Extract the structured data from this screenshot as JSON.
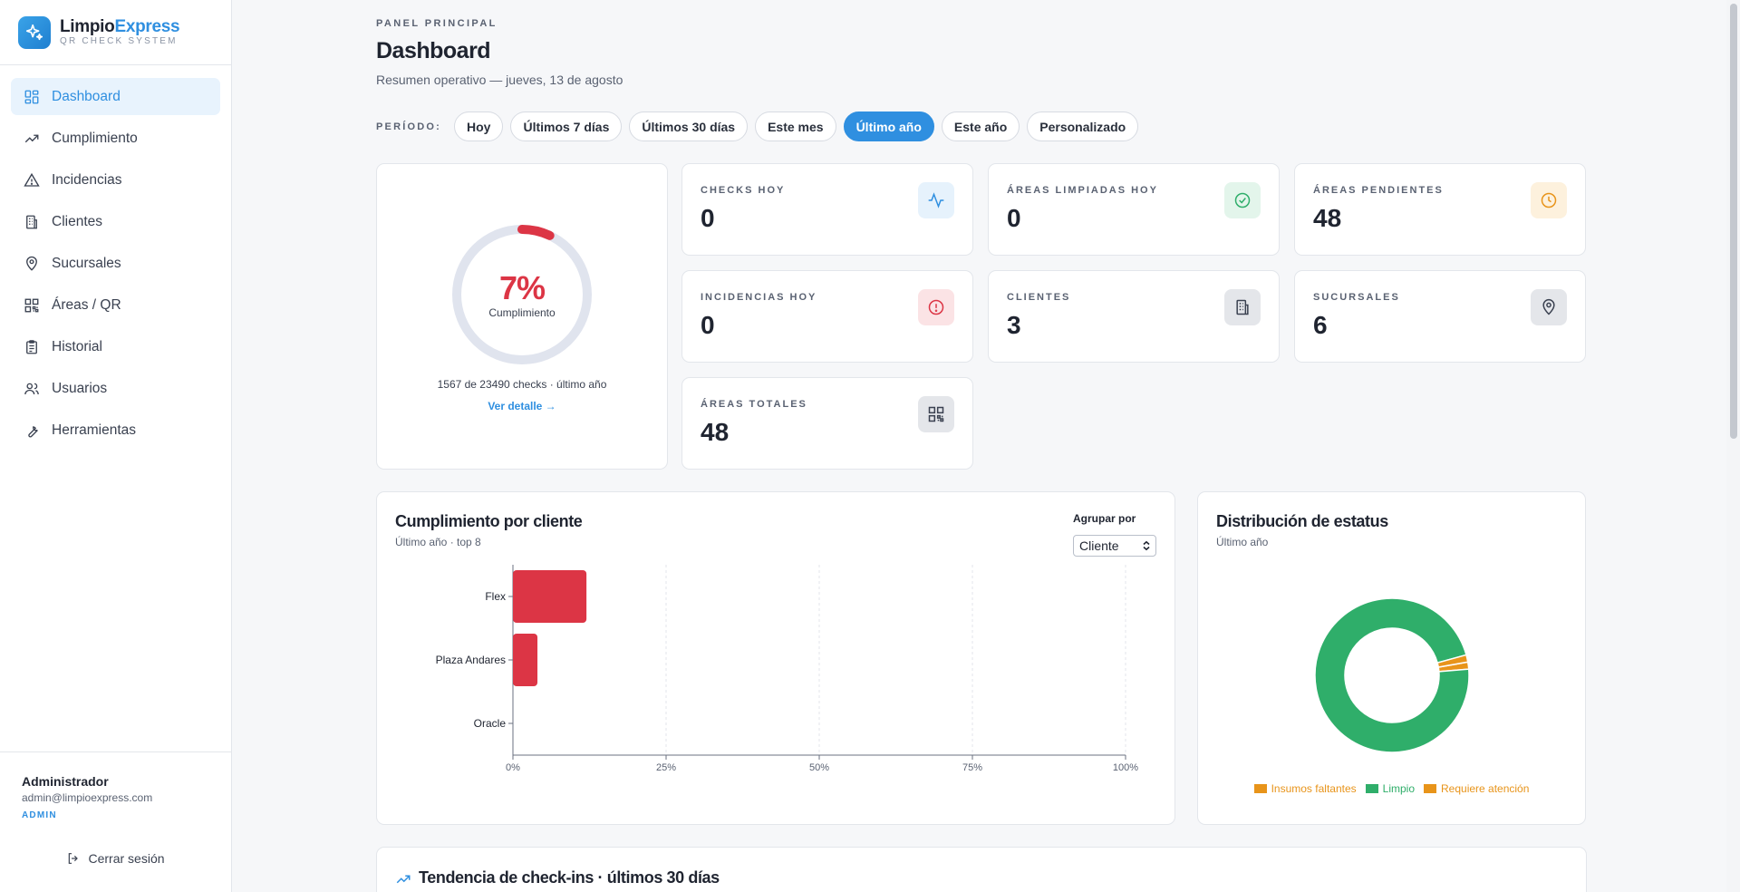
{
  "brand": {
    "name_part1": "Limpio",
    "name_part2": "Express",
    "subtitle": "QR CHECK SYSTEM"
  },
  "nav": [
    {
      "label": "Dashboard",
      "icon": "grid-icon",
      "active": true
    },
    {
      "label": "Cumplimiento",
      "icon": "trend-icon"
    },
    {
      "label": "Incidencias",
      "icon": "warning-icon"
    },
    {
      "label": "Clientes",
      "icon": "building-icon"
    },
    {
      "label": "Sucursales",
      "icon": "map-pin-icon"
    },
    {
      "label": "Áreas / QR",
      "icon": "qr-icon"
    },
    {
      "label": "Historial",
      "icon": "clipboard-icon"
    },
    {
      "label": "Usuarios",
      "icon": "users-icon"
    },
    {
      "label": "Herramientas",
      "icon": "wrench-icon"
    }
  ],
  "user": {
    "name": "Administrador",
    "email": "admin@limpioexpress.com",
    "role": "ADMIN",
    "logout": "Cerrar sesión"
  },
  "header": {
    "eyebrow": "PANEL PRINCIPAL",
    "title": "Dashboard",
    "subtitle": "Resumen operativo — jueves, 13 de agosto"
  },
  "period": {
    "label": "PERÍODO:",
    "options": [
      "Hoy",
      "Últimos 7 días",
      "Últimos 30 días",
      "Este mes",
      "Último año",
      "Este año",
      "Personalizado"
    ],
    "selected": "Último año"
  },
  "gauge": {
    "percent_label": "7%",
    "value": 0.07,
    "label": "Cumplimiento",
    "summary": "1567 de 23490 checks · último año",
    "link": "Ver detalle →"
  },
  "kpis": [
    {
      "label": "CHECKS HOY",
      "value": "0",
      "icon": "activity-icon"
    },
    {
      "label": "ÁREAS LIMPIADAS HOY",
      "value": "0",
      "icon": "check-circle-icon"
    },
    {
      "label": "ÁREAS PENDIENTES",
      "value": "48",
      "icon": "clock-icon"
    },
    {
      "label": "INCIDENCIAS HOY",
      "value": "0",
      "icon": "alert-circle-icon"
    },
    {
      "label": "CLIENTES",
      "value": "3",
      "icon": "building-icon"
    },
    {
      "label": "SUCURSALES",
      "value": "6",
      "icon": "map-pin-icon"
    },
    {
      "label": "ÁREAS TOTALES",
      "value": "48",
      "icon": "qr-icon"
    }
  ],
  "compliance": {
    "title": "Cumplimiento por cliente",
    "subtitle": "Último año · top 8",
    "group_label": "Agrupar por",
    "group_value": "Cliente"
  },
  "status": {
    "title": "Distribución de estatus",
    "subtitle": "Último año"
  },
  "trend": {
    "title": "Tendencia de check-ins · últimos 30 días"
  },
  "chart_data": [
    {
      "type": "bar",
      "orientation": "horizontal",
      "categories": [
        "Flex",
        "Plaza Andares",
        "Oracle"
      ],
      "values": [
        12,
        4,
        0
      ],
      "xlim": [
        0,
        100
      ],
      "xticks": [
        "0%",
        "25%",
        "50%",
        "75%",
        "100%"
      ],
      "grid": true,
      "color": "#dc3545"
    },
    {
      "type": "pie",
      "donut": true,
      "labels": [
        "Insumos faltantes",
        "Limpio",
        "Requiere atención"
      ],
      "values": [
        1.5,
        97,
        1.5
      ],
      "colors": [
        "#e8941a",
        "#2fae6a",
        "#e8941a"
      ],
      "legend": "bottom"
    }
  ]
}
